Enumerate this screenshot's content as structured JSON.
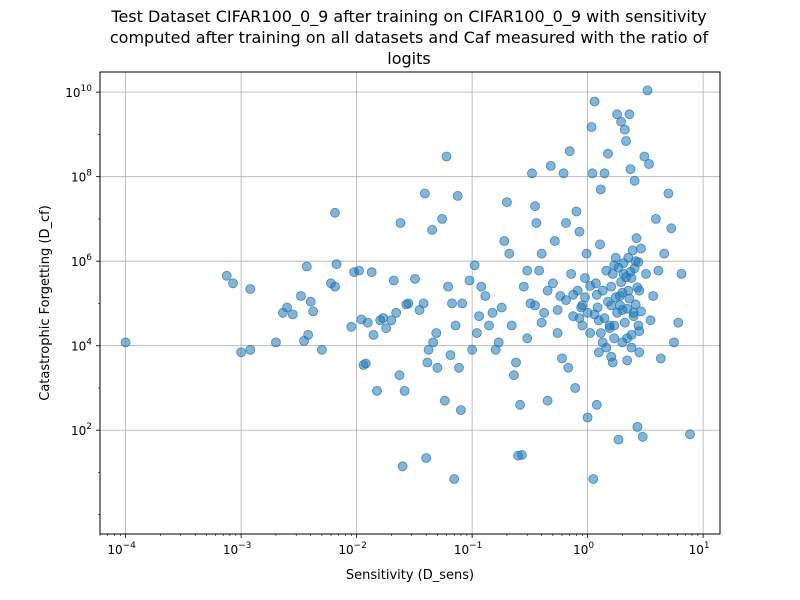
{
  "chart_data": {
    "type": "scatter",
    "title_lines": [
      "Test Dataset CIFAR100_0_9 after training on CIFAR100_0_9 with sensitivity",
      "computed after training on all datasets and Caf measured with the ratio of",
      "logits"
    ],
    "xlabel": "Sensitivity (D_sens)",
    "ylabel": "Catastrophic Forgetting (D_cf)",
    "x_scale": "log",
    "y_scale": "log",
    "xlim": [
      6e-05,
      14
    ],
    "ylim": [
      0.35,
      30000000000.0
    ],
    "grid": true,
    "color": "#1f77b4",
    "x_tick_labels": [
      {
        "value": 0.0001,
        "base": "10",
        "exp": "−4"
      },
      {
        "value": 0.001,
        "base": "10",
        "exp": "−3"
      },
      {
        "value": 0.01,
        "base": "10",
        "exp": "−2"
      },
      {
        "value": 0.1,
        "base": "10",
        "exp": "−1"
      },
      {
        "value": 1,
        "base": "10",
        "exp": "0"
      },
      {
        "value": 10,
        "base": "10",
        "exp": "1"
      }
    ],
    "y_tick_labels": [
      {
        "value": 100,
        "base": "10",
        "exp": "2"
      },
      {
        "value": 10000,
        "base": "10",
        "exp": "4"
      },
      {
        "value": 1000000,
        "base": "10",
        "exp": "6"
      },
      {
        "value": 100000000,
        "base": "10",
        "exp": "8"
      },
      {
        "value": 10000000000,
        "base": "10",
        "exp": "10"
      }
    ],
    "points": [
      [
        0.0001,
        12000
      ],
      [
        0.00075,
        450000
      ],
      [
        0.00085,
        300000
      ],
      [
        0.001,
        7000
      ],
      [
        0.0012,
        8000
      ],
      [
        0.0012,
        220000
      ],
      [
        0.002,
        12000
      ],
      [
        0.0023,
        60000
      ],
      [
        0.0025,
        80000
      ],
      [
        0.0028,
        55000
      ],
      [
        0.0033,
        150000
      ],
      [
        0.0035,
        13000
      ],
      [
        0.0037,
        750000
      ],
      [
        0.0038,
        18000
      ],
      [
        0.004,
        110000
      ],
      [
        0.0042,
        65000
      ],
      [
        0.005,
        8000
      ],
      [
        0.006,
        300000
      ],
      [
        0.0065,
        250000
      ],
      [
        0.0065,
        14000000
      ],
      [
        0.0067,
        850000
      ],
      [
        0.009,
        28000
      ],
      [
        0.0095,
        550000
      ],
      [
        0.0105,
        600000
      ],
      [
        0.011,
        42000
      ],
      [
        0.0115,
        3500
      ],
      [
        0.012,
        3800
      ],
      [
        0.0125,
        35000
      ],
      [
        0.0135,
        550000
      ],
      [
        0.014,
        18000
      ],
      [
        0.015,
        850
      ],
      [
        0.016,
        40000
      ],
      [
        0.017,
        45000
      ],
      [
        0.018,
        26000
      ],
      [
        0.02,
        40000
      ],
      [
        0.021,
        350000
      ],
      [
        0.022,
        60000
      ],
      [
        0.0235,
        2000
      ],
      [
        0.024,
        8000000
      ],
      [
        0.025,
        14
      ],
      [
        0.026,
        850
      ],
      [
        0.027,
        95000
      ],
      [
        0.028,
        100000
      ],
      [
        0.032,
        380000
      ],
      [
        0.035,
        70000
      ],
      [
        0.038,
        100000
      ],
      [
        0.039,
        40000000
      ],
      [
        0.04,
        22
      ],
      [
        0.041,
        4000
      ],
      [
        0.042,
        8000
      ],
      [
        0.045,
        5500000
      ],
      [
        0.046,
        12000
      ],
      [
        0.049,
        20000
      ],
      [
        0.05,
        3000
      ],
      [
        0.055,
        10000000
      ],
      [
        0.058,
        500
      ],
      [
        0.06,
        300000000
      ],
      [
        0.062,
        250000
      ],
      [
        0.065,
        6000
      ],
      [
        0.067,
        100000
      ],
      [
        0.07,
        7
      ],
      [
        0.072,
        30000
      ],
      [
        0.075,
        35000000
      ],
      [
        0.077,
        3000
      ],
      [
        0.08,
        300
      ],
      [
        0.082,
        100000
      ],
      [
        0.095,
        350000
      ],
      [
        0.1,
        8000
      ],
      [
        0.105,
        800000
      ],
      [
        0.11,
        20000
      ],
      [
        0.115,
        50000
      ],
      [
        0.12,
        250000
      ],
      [
        0.13,
        150000
      ],
      [
        0.14,
        30000
      ],
      [
        0.15,
        60000
      ],
      [
        0.16,
        8000
      ],
      [
        0.17,
        12000
      ],
      [
        0.18,
        80000
      ],
      [
        0.19,
        3000000
      ],
      [
        0.2,
        25000000
      ],
      [
        0.21,
        1500000
      ],
      [
        0.22,
        30000
      ],
      [
        0.23,
        2000
      ],
      [
        0.24,
        4000
      ],
      [
        0.25,
        25
      ],
      [
        0.26,
        400
      ],
      [
        0.27,
        26
      ],
      [
        0.28,
        250000
      ],
      [
        0.3,
        600000
      ],
      [
        0.32,
        100000
      ],
      [
        0.33,
        120000000
      ],
      [
        0.35,
        20000000
      ],
      [
        0.36,
        8000000
      ],
      [
        0.38,
        600000
      ],
      [
        0.4,
        1500000
      ],
      [
        0.42,
        60000
      ],
      [
        0.45,
        500
      ],
      [
        0.48,
        180000000
      ],
      [
        0.5,
        300000
      ],
      [
        0.52,
        3000000
      ],
      [
        0.55,
        20000
      ],
      [
        0.58,
        150000
      ],
      [
        0.6,
        5000
      ],
      [
        0.62,
        120000000
      ],
      [
        0.65,
        8000000
      ],
      [
        0.68,
        3000
      ],
      [
        0.7,
        400000000
      ],
      [
        0.72,
        500000
      ],
      [
        0.75,
        50000
      ],
      [
        0.78,
        1000
      ],
      [
        0.8,
        15000000
      ],
      [
        0.82,
        200000
      ],
      [
        0.85,
        5000000
      ],
      [
        0.88,
        80000
      ],
      [
        0.9,
        30000
      ],
      [
        0.95,
        400000
      ],
      [
        0.98,
        1500000
      ],
      [
        1.0,
        200
      ],
      [
        1.05,
        20000
      ],
      [
        1.08,
        1500000000
      ],
      [
        1.1,
        120000000
      ],
      [
        1.12,
        7
      ],
      [
        1.15,
        6000000000
      ],
      [
        1.18,
        300000
      ],
      [
        1.2,
        400
      ],
      [
        1.22,
        80000
      ],
      [
        1.25,
        40000
      ],
      [
        1.28,
        2500000
      ],
      [
        1.3,
        50000000
      ],
      [
        1.35,
        200000
      ],
      [
        1.4,
        120000000
      ],
      [
        1.45,
        600000
      ],
      [
        1.5,
        350000000
      ],
      [
        1.55,
        30000
      ],
      [
        1.6,
        90000
      ],
      [
        1.65,
        4000
      ],
      [
        1.7,
        800000
      ],
      [
        1.75,
        1200000
      ],
      [
        1.8,
        3000000000
      ],
      [
        1.85,
        60
      ],
      [
        1.9,
        150000
      ],
      [
        1.95,
        2000000000
      ],
      [
        2.0,
        70000
      ],
      [
        2.05,
        500000
      ],
      [
        2.1,
        1300000000
      ],
      [
        2.15,
        700000000
      ],
      [
        2.2,
        15000
      ],
      [
        2.25,
        200000
      ],
      [
        2.3,
        3000000000
      ],
      [
        2.35,
        150000000
      ],
      [
        2.4,
        400000
      ],
      [
        2.5,
        60000
      ],
      [
        2.55,
        80000000
      ],
      [
        2.6,
        1000000
      ],
      [
        2.7,
        120
      ],
      [
        2.75,
        30000
      ],
      [
        2.8,
        200000
      ],
      [
        2.9,
        2000000
      ],
      [
        3.0,
        70
      ],
      [
        3.1,
        300000000
      ],
      [
        3.2,
        500000
      ],
      [
        3.3,
        11000000000
      ],
      [
        3.4,
        200000000
      ],
      [
        3.5,
        40000
      ],
      [
        3.7,
        150000
      ],
      [
        3.9,
        10000000
      ],
      [
        4.1,
        600000
      ],
      [
        4.3,
        5000
      ],
      [
        4.6,
        1500000
      ],
      [
        5.0,
        40000000
      ],
      [
        5.3,
        6000000
      ],
      [
        5.6,
        12000
      ],
      [
        6.1,
        35000
      ],
      [
        6.5,
        500000
      ],
      [
        7.7,
        80
      ],
      [
        1.3,
        20000
      ],
      [
        1.4,
        45000
      ],
      [
        1.5,
        110000
      ],
      [
        1.6,
        250000
      ],
      [
        1.7,
        30000
      ],
      [
        1.8,
        60000
      ],
      [
        1.9,
        90000
      ],
      [
        2.0,
        180000
      ],
      [
        2.1,
        35000
      ],
      [
        2.2,
        75000
      ],
      [
        2.3,
        130000
      ],
      [
        2.4,
        18000
      ],
      [
        2.5,
        50000
      ],
      [
        2.6,
        95000
      ],
      [
        2.7,
        240000
      ],
      [
        2.8,
        22000
      ],
      [
        2.9,
        65000
      ],
      [
        1.25,
        7000
      ],
      [
        1.45,
        9000
      ],
      [
        1.65,
        500000
      ],
      [
        1.85,
        700000
      ],
      [
        2.05,
        900000
      ],
      [
        2.25,
        1200000
      ],
      [
        2.45,
        1800000
      ],
      [
        2.65,
        3500000
      ],
      [
        1.35,
        12000
      ],
      [
        1.55,
        26000
      ],
      [
        1.75,
        140000
      ],
      [
        1.95,
        320000
      ],
      [
        2.15,
        420000
      ],
      [
        2.35,
        560000
      ],
      [
        2.55,
        680000
      ],
      [
        2.75,
        950000
      ],
      [
        1.15,
        55000
      ],
      [
        1.2,
        160000
      ],
      [
        1.7,
        15000
      ],
      [
        2.0,
        12000
      ],
      [
        2.4,
        9000
      ],
      [
        2.8,
        7000
      ],
      [
        1.6,
        5500
      ],
      [
        2.2,
        4500
      ],
      [
        0.9,
        90000
      ],
      [
        0.95,
        140000
      ],
      [
        1.0,
        60000
      ],
      [
        1.05,
        260000
      ],
      [
        0.85,
        45000
      ],
      [
        0.75,
        160000
      ],
      [
        0.65,
        120000
      ],
      [
        0.55,
        70000
      ],
      [
        0.45,
        200000
      ],
      [
        0.4,
        35000
      ],
      [
        0.35,
        90000
      ],
      [
        0.3,
        15000
      ]
    ]
  }
}
